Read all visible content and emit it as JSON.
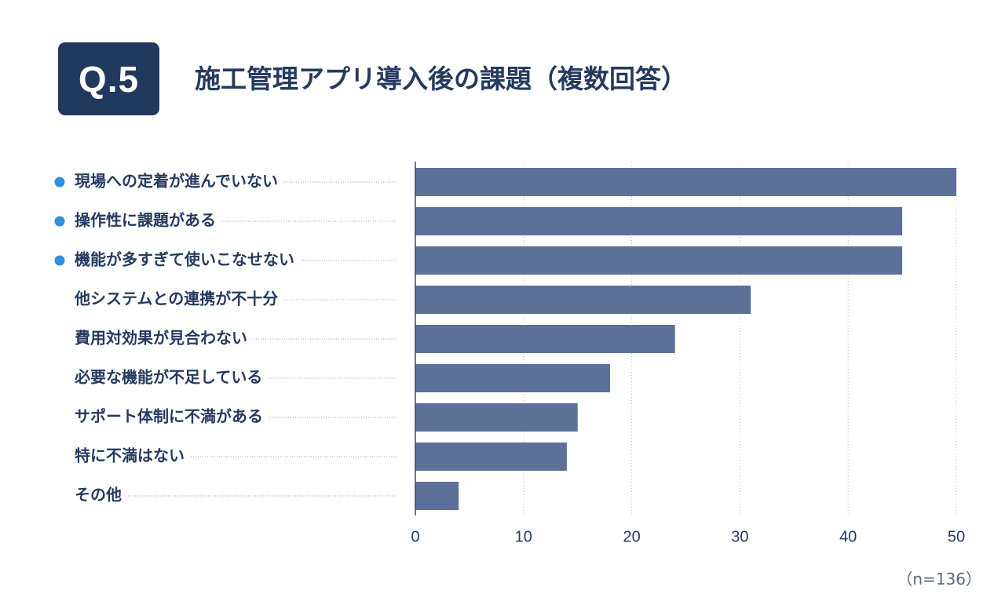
{
  "badge": "Q.5",
  "title": "施工管理アプリ導入後の課題（複数回答）",
  "note": "（n=136）",
  "colors": {
    "bar": "#5d7098",
    "text": "#253a5e",
    "dot": "#2f8fe0",
    "grid": "#b4bccb",
    "leader": "#9aa4b6",
    "badge_bg": "#22395f"
  },
  "chart_data": {
    "type": "bar",
    "orientation": "horizontal",
    "categories": [
      "現場への定着が進んでいない",
      "操作性に課題がある",
      "機能が多すぎて使いこなせない",
      "他システムとの連携が不十分",
      "費用対効果が見合わない",
      "必要な機能が不足している",
      "サポート体制に不満がある",
      "特に不満はない",
      "その他"
    ],
    "values": [
      50,
      45,
      45,
      31,
      24,
      18,
      15,
      14,
      4
    ],
    "highlighted": [
      true,
      true,
      true,
      false,
      false,
      false,
      false,
      false,
      false
    ],
    "xlim": [
      0,
      50
    ],
    "xticks": [
      0,
      10,
      20,
      30,
      40,
      50
    ],
    "grid": "vertical dotted"
  }
}
